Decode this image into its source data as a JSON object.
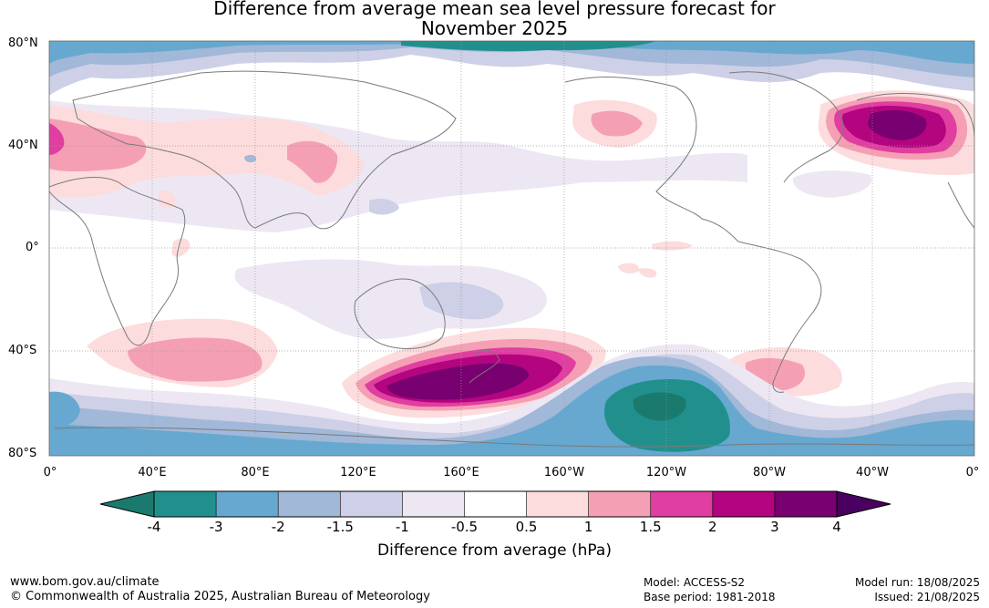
{
  "title_line1": "Difference from average mean sea level pressure forecast for",
  "title_line2": "November 2025",
  "lat_labels": [
    "80°N",
    "40°N",
    "0°",
    "40°S",
    "80°S"
  ],
  "lon_labels": [
    "0°",
    "40°E",
    "80°E",
    "120°E",
    "160°E",
    "160°W",
    "120°W",
    "80°W",
    "40°W",
    "0°"
  ],
  "colorbar": {
    "title": "Difference from average (hPa)",
    "ticks": [
      "-4",
      "-3",
      "-2",
      "-1.5",
      "-1",
      "-0.5",
      "0.5",
      "1",
      "1.5",
      "2",
      "3",
      "4"
    ],
    "colors": [
      "#1a7a6e",
      "#21908d",
      "#66a8d0",
      "#a1b8d8",
      "#cdd0e6",
      "#ede7f3",
      "#ffffff",
      "#fddcdd",
      "#f59fb5",
      "#e03ea0",
      "#b2057f",
      "#780070",
      "#4a0060"
    ]
  },
  "footer": {
    "url": "www.bom.gov.au/climate",
    "copyright": "© Commonwealth of Australia 2025, Australian Bureau of Meteorology",
    "model": "Model: ACCESS-S2",
    "base_period": "Base period: 1981-2018",
    "model_run": "Model run: 18/08/2025",
    "issued": "Issued: 21/08/2025"
  }
}
